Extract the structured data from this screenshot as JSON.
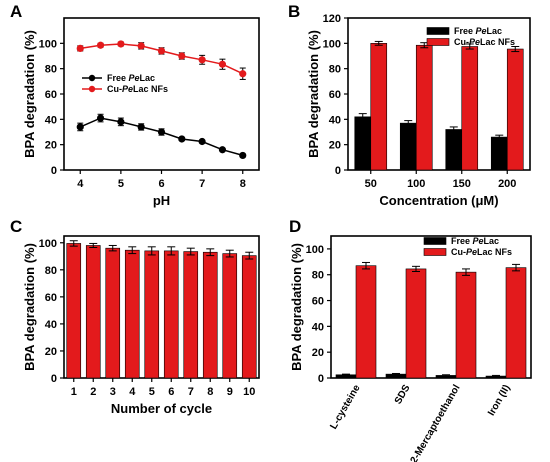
{
  "colors": {
    "black": "#000000",
    "red": "#e31a1c",
    "red_line": "#e31a1c"
  },
  "chart_data": [
    {
      "panel": "A",
      "type": "line",
      "xlabel": "pH",
      "ylabel": "BPA degradation (%)",
      "xlim": [
        3.6,
        8.4
      ],
      "ylim": [
        0,
        120
      ],
      "xticks": [
        4,
        5,
        6,
        7,
        8
      ],
      "yticks": [
        0,
        20,
        40,
        60,
        80,
        100
      ],
      "legend": "middle-left",
      "series": [
        {
          "name_parts": [
            "Free ",
            "Pe",
            "Lac"
          ],
          "color": "#000000",
          "x": [
            4,
            4.5,
            5,
            5.5,
            6,
            6.5,
            7,
            7.5,
            8
          ],
          "y": [
            34,
            41,
            38,
            34,
            30,
            24.5,
            22.5,
            16,
            11.5
          ],
          "err": [
            3,
            3,
            3,
            2.5,
            2.5,
            1,
            1,
            1,
            1
          ]
        },
        {
          "name_parts": [
            "Cu-",
            "Pe",
            "Lac NFs"
          ],
          "color": "#e31a1c",
          "x": [
            4,
            4.5,
            5,
            5.5,
            6,
            6.5,
            7,
            7.5,
            8
          ],
          "y": [
            96,
            98.5,
            99.5,
            98,
            94,
            90,
            87,
            83.5,
            76
          ],
          "err": [
            2,
            1.5,
            1.5,
            2.5,
            2.5,
            2.5,
            3.5,
            4,
            4.5
          ]
        }
      ]
    },
    {
      "panel": "B",
      "type": "bar",
      "xlabel": "Concentration (μM)",
      "ylabel": "BPA degradation (%)",
      "ylim": [
        0,
        120
      ],
      "yticks": [
        0,
        20,
        40,
        60,
        80,
        100,
        120
      ],
      "categories": [
        "50",
        "100",
        "150",
        "200"
      ],
      "legend": "top-right",
      "series": [
        {
          "name_parts": [
            "Free ",
            "Pe",
            "Lac"
          ],
          "color": "#000000",
          "values": [
            42,
            37,
            32,
            26
          ],
          "err": [
            2.5,
            2,
            2,
            1.5
          ]
        },
        {
          "name_parts": [
            "Cu-",
            "Pe",
            "Lac NFs"
          ],
          "color": "#e31a1c",
          "values": [
            100,
            98.5,
            97.5,
            95.5
          ],
          "err": [
            1.5,
            2,
            2,
            2
          ]
        }
      ]
    },
    {
      "panel": "C",
      "type": "bar",
      "xlabel": "Number of cycle",
      "ylabel": "BPA degradation (%)",
      "ylim": [
        0,
        105
      ],
      "yticks": [
        0,
        20,
        40,
        60,
        80,
        100
      ],
      "categories": [
        "1",
        "2",
        "3",
        "4",
        "5",
        "6",
        "7",
        "8",
        "9",
        "10"
      ],
      "series": [
        {
          "color": "#e31a1c",
          "values": [
            99.5,
            98,
            96,
            94.5,
            94,
            94,
            93.5,
            93,
            92,
            90.5
          ],
          "err": [
            2,
            1.5,
            2,
            2.5,
            3,
            3,
            2.5,
            2.5,
            2.5,
            2.5
          ]
        }
      ]
    },
    {
      "panel": "D",
      "type": "bar",
      "ylabel": "BPA degradation (%)",
      "ylim": [
        0,
        110
      ],
      "yticks": [
        0,
        20,
        40,
        60,
        80,
        100
      ],
      "categories": [
        "L-cysteine",
        "SDS",
        "2-Mercaptoethanol",
        "Iron (II)"
      ],
      "legend": "top-center",
      "series": [
        {
          "name_parts": [
            "Free ",
            "Pe",
            "Lac"
          ],
          "color": "#000000",
          "values": [
            2.5,
            3,
            2,
            1.5
          ],
          "err": [
            0.5,
            0.5,
            0.5,
            0.5
          ]
        },
        {
          "name_parts": [
            "Cu-",
            "Pe",
            "Lac NFs"
          ],
          "color": "#e31a1c",
          "values": [
            87,
            84.5,
            82,
            85.5
          ],
          "err": [
            2.5,
            2,
            2.5,
            2.5
          ]
        }
      ]
    }
  ]
}
